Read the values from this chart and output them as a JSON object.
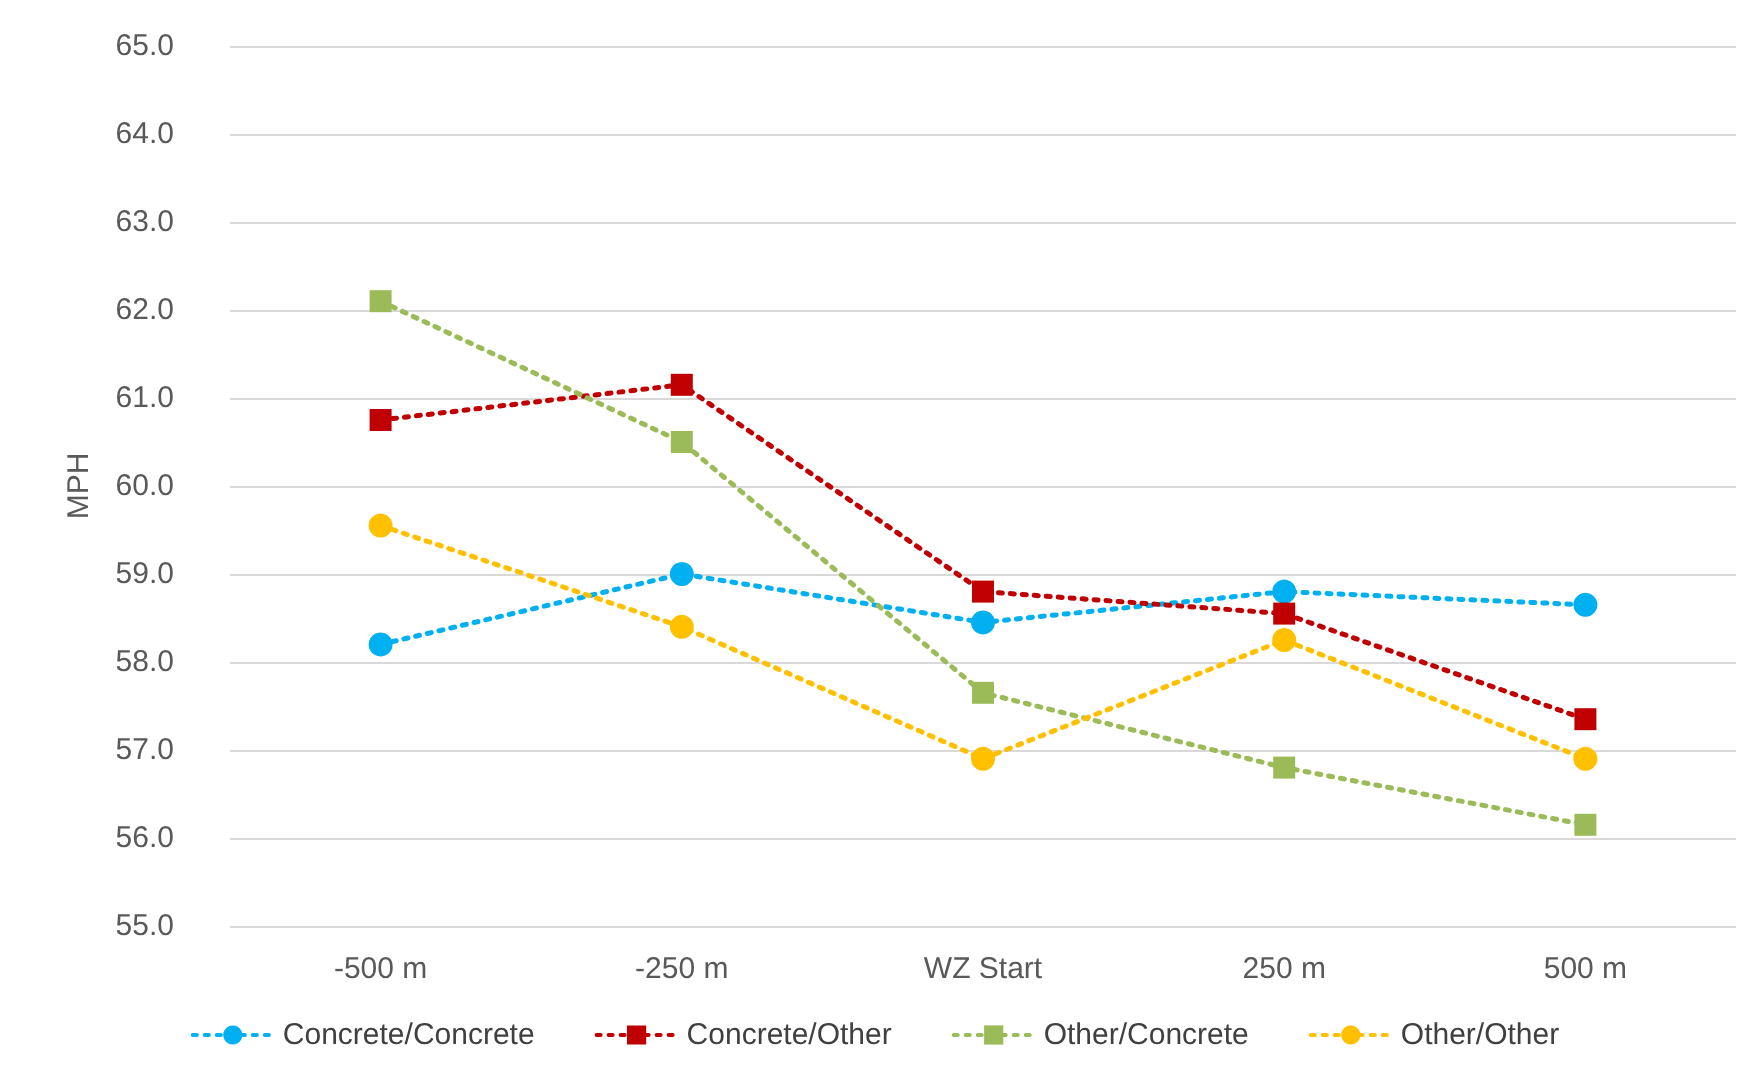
{
  "chart_data": {
    "type": "line",
    "ylabel": "MPH",
    "categories": [
      "-500 m",
      "-250 m",
      "WZ Start",
      "250 m",
      "500 m"
    ],
    "series": [
      {
        "name": "Concrete/Concrete",
        "color": "#00b0f0",
        "marker": "circle",
        "values": [
          58.2,
          59.0,
          58.45,
          58.8,
          58.65
        ]
      },
      {
        "name": "Concrete/Other",
        "color": "#c00000",
        "marker": "square",
        "values": [
          60.75,
          61.15,
          58.8,
          58.55,
          57.35
        ]
      },
      {
        "name": "Other/Concrete",
        "color": "#9bbb59",
        "marker": "square",
        "values": [
          62.1,
          60.5,
          57.65,
          56.8,
          56.15
        ]
      },
      {
        "name": "Other/Other",
        "color": "#ffc000",
        "marker": "circle",
        "values": [
          59.55,
          58.4,
          56.9,
          58.25,
          56.9
        ]
      }
    ],
    "ylim": [
      55,
      65
    ],
    "yticks": [
      {
        "value": 55,
        "label": "55.0"
      },
      {
        "value": 56,
        "label": "56.0"
      },
      {
        "value": 57,
        "label": "57.0"
      },
      {
        "value": 58,
        "label": "58.0"
      },
      {
        "value": 59,
        "label": "59.0"
      },
      {
        "value": 60,
        "label": "60.0"
      },
      {
        "value": 61,
        "label": "61.0"
      },
      {
        "value": 62,
        "label": "62.0"
      },
      {
        "value": 63,
        "label": "63.0"
      },
      {
        "value": 64,
        "label": "64.0"
      },
      {
        "value": 65,
        "label": "65.0"
      }
    ],
    "grid": "y",
    "legend": "bottom",
    "line_style": "dotted"
  }
}
